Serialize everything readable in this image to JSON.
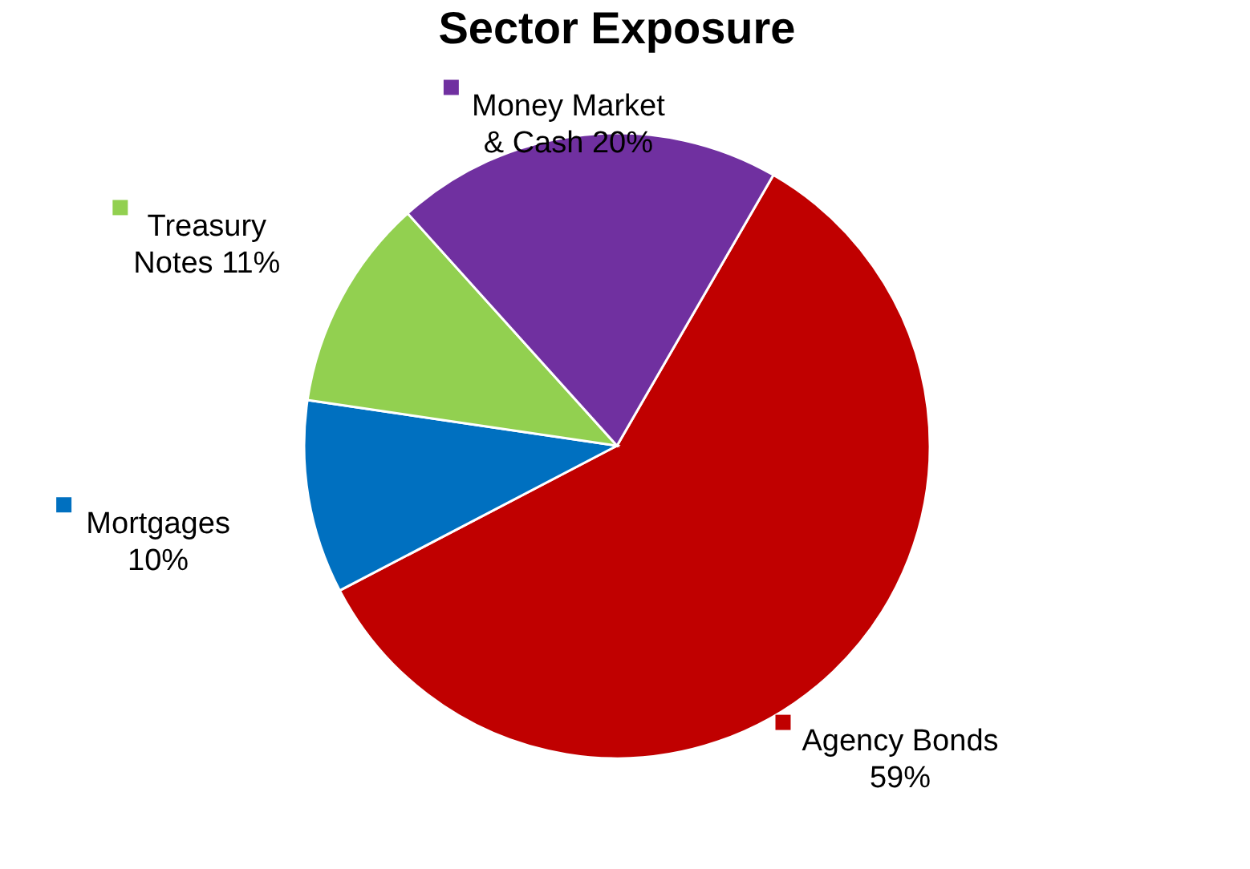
{
  "chart_data": {
    "type": "pie",
    "title": "Sector Exposure",
    "categories": [
      "Agency Bonds",
      "Mortgages",
      "Treasury Notes",
      "Money Market & Cash"
    ],
    "values": [
      59,
      10,
      11,
      20
    ],
    "colors": [
      "#c00000",
      "#0070c0",
      "#92d050",
      "#7030a0"
    ],
    "value_labels": [
      "59%",
      "10%",
      "11%",
      "20%"
    ],
    "legend": true
  }
}
